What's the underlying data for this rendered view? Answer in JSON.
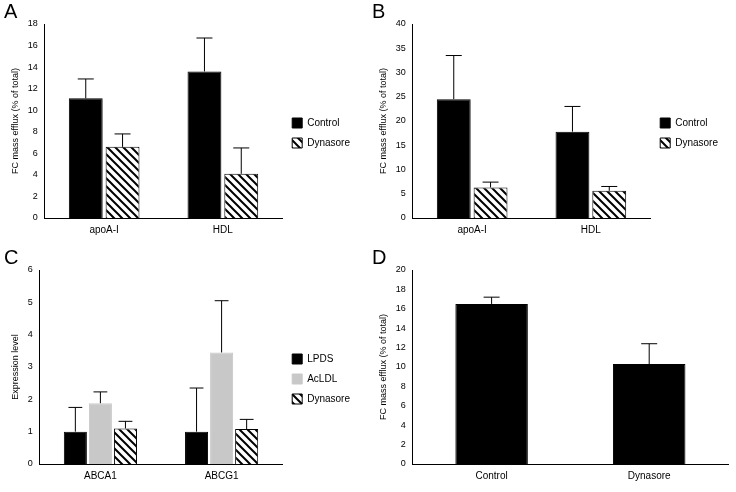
{
  "chart_data": [
    {
      "type": "bar",
      "title": "A",
      "y_label": "FC mass efflux (% of total)",
      "categories": [
        "apoA-I",
        "HDL"
      ],
      "series": [
        {
          "name": "Control",
          "color": "#000000",
          "values": [
            11.1,
            13.6
          ],
          "errors": [
            1.8,
            3.1
          ]
        },
        {
          "name": "Dynasore",
          "color": "#000000",
          "marker": "hatch",
          "values": [
            6.6,
            4.1
          ],
          "errors": [
            1.2,
            2.4
          ]
        }
      ],
      "ylim": [
        0,
        18
      ],
      "yticks": [
        0,
        2,
        4,
        6,
        8,
        10,
        12,
        14,
        16,
        18
      ],
      "grid": false,
      "legend": "right"
    },
    {
      "type": "bar",
      "title": "B",
      "y_label": "FC mass efflux (% of total)",
      "categories": [
        "apoA-I",
        "HDL"
      ],
      "series": [
        {
          "name": "Control",
          "color": "#000000",
          "values": [
            24.5,
            17.8
          ],
          "errors": [
            9.0,
            5.2
          ]
        },
        {
          "name": "Dynasore",
          "color": "#000000",
          "marker": "hatch",
          "values": [
            6.3,
            5.6
          ],
          "errors": [
            1.1,
            0.9
          ]
        }
      ],
      "ylim": [
        0,
        40
      ],
      "yticks": [
        0,
        5,
        10,
        15,
        20,
        25,
        30,
        35,
        40
      ],
      "grid": false,
      "legend": "right"
    },
    {
      "type": "bar",
      "title": "C",
      "y_label": "Expression level",
      "categories": [
        "ABCA1",
        "ABCG1"
      ],
      "series": [
        {
          "name": "LPDS",
          "color": "#000000",
          "values": [
            1.0,
            1.0
          ],
          "errors": [
            0.75,
            1.35
          ]
        },
        {
          "name": "AcLDL",
          "color": "#c8c8c8",
          "values": [
            1.88,
            3.45
          ],
          "errors": [
            0.35,
            1.6
          ]
        },
        {
          "name": "Dynasore",
          "color": "#000000",
          "marker": "hatch",
          "values": [
            1.1,
            1.08
          ],
          "errors": [
            0.22,
            0.3
          ]
        }
      ],
      "ylim": [
        0,
        6
      ],
      "yticks": [
        0,
        1,
        2,
        3,
        4,
        5,
        6
      ],
      "grid": false,
      "legend": "right"
    },
    {
      "type": "bar",
      "title": "D",
      "y_label": "FC mass efflux (% of total)",
      "categories": [
        "Control",
        "Dynasore"
      ],
      "color": "#000000",
      "values": [
        16.5,
        10.3
      ],
      "errors": [
        0.7,
        2.1
      ],
      "ylim": [
        0,
        20
      ],
      "yticks": [
        0,
        2,
        4,
        6,
        8,
        10,
        12,
        14,
        16,
        18,
        20
      ],
      "grid": false
    }
  ]
}
